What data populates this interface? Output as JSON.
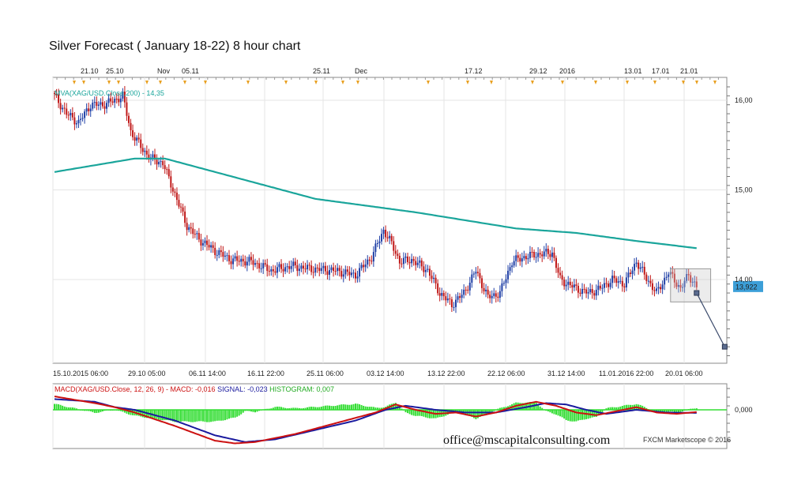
{
  "title": "Silver Forecast ( January 18-22) 8 hour chart",
  "footer": {
    "email": "office@mscapitalconsulting.com",
    "credit": "FXCM Marketscope © 2016"
  },
  "colors": {
    "bull": "#1f3fa6",
    "bear": "#c01818",
    "ma": "#1aa59b",
    "macd": "#cc1111",
    "signal": "#1a1a9e",
    "histogram": "#33dd33",
    "grid": "#e4e4e4",
    "last_price_bg": "#3c9fd8"
  },
  "chart_data": [
    {
      "type": "candlestick",
      "title": "",
      "xlabel": "",
      "ylabel": "",
      "ylim": [
        13.1,
        16.12
      ],
      "yticks": [
        "16,00",
        "15,00",
        "14,00"
      ],
      "top_date_labels": [
        "21.10",
        "25.10",
        "Nov",
        "05.11",
        "25.11",
        "Dec",
        "17.12",
        "29.12",
        "2016",
        "13.01",
        "17.01",
        "21.01"
      ],
      "bottom_date_labels": [
        "15.10.2015 06:00",
        "29.10 05:00",
        "06.11 14:00",
        "16.11 22:00",
        "25.11 06:00",
        "03.12 14:00",
        "13.12 22:00",
        "22.12 06:00",
        "31.12 14:00",
        "11.01.2016 22:00",
        "20.01 06:00"
      ],
      "last_price_label": "13,922",
      "ma_label": "MVA(XAG/USD.Close,200) - 14,35",
      "close_anchors": [
        [
          0,
          16.05
        ],
        [
          6,
          15.85
        ],
        [
          12,
          15.75
        ],
        [
          18,
          15.95
        ],
        [
          24,
          15.95
        ],
        [
          30,
          16.0
        ],
        [
          34,
          16.05
        ],
        [
          38,
          15.65
        ],
        [
          44,
          15.45
        ],
        [
          48,
          15.35
        ],
        [
          54,
          15.3
        ],
        [
          60,
          14.95
        ],
        [
          66,
          14.6
        ],
        [
          72,
          14.45
        ],
        [
          80,
          14.32
        ],
        [
          88,
          14.22
        ],
        [
          98,
          14.2
        ],
        [
          108,
          14.1
        ],
        [
          118,
          14.15
        ],
        [
          128,
          14.12
        ],
        [
          140,
          14.1
        ],
        [
          150,
          14.05
        ],
        [
          158,
          14.25
        ],
        [
          164,
          14.55
        ],
        [
          168,
          14.4
        ],
        [
          172,
          14.2
        ],
        [
          178,
          14.22
        ],
        [
          186,
          14.1
        ],
        [
          192,
          13.85
        ],
        [
          198,
          13.72
        ],
        [
          204,
          13.85
        ],
        [
          210,
          14.1
        ],
        [
          216,
          13.8
        ],
        [
          222,
          13.85
        ],
        [
          228,
          14.2
        ],
        [
          234,
          14.25
        ],
        [
          240,
          14.28
        ],
        [
          248,
          14.3
        ],
        [
          252,
          14.0
        ],
        [
          260,
          13.9
        ],
        [
          266,
          13.85
        ],
        [
          272,
          13.9
        ],
        [
          278,
          14.0
        ],
        [
          284,
          13.95
        ],
        [
          290,
          14.2
        ],
        [
          294,
          14.05
        ],
        [
          300,
          13.85
        ],
        [
          306,
          14.08
        ],
        [
          312,
          13.9
        ],
        [
          316,
          14.05
        ],
        [
          320,
          13.92
        ]
      ],
      "ma_anchors": [
        [
          0,
          15.2
        ],
        [
          40,
          15.35
        ],
        [
          55,
          15.35
        ],
        [
          80,
          15.2
        ],
        [
          130,
          14.9
        ],
        [
          180,
          14.75
        ],
        [
          230,
          14.57
        ],
        [
          260,
          14.52
        ],
        [
          290,
          14.43
        ],
        [
          320,
          14.35
        ]
      ],
      "forecast_points": [
        [
          320,
          13.85
        ],
        [
          334,
          13.25
        ]
      ]
    },
    {
      "type": "line",
      "title": "",
      "xlabel": "",
      "ylabel": "",
      "ylim": [
        -0.3,
        0.25
      ],
      "yticks": [
        "0,000"
      ],
      "legend": {
        "macd_name": "MACD(XAG/USD.Close, 12, 26, 9)",
        "macd_value": "MACD: -0,016",
        "signal_value": "SIGNAL: -0,023",
        "histogram_value": "HISTOGRAM: 0,007"
      },
      "macd_anchors": [
        [
          0,
          0.1
        ],
        [
          20,
          0.05
        ],
        [
          30,
          0.02
        ],
        [
          40,
          -0.02
        ],
        [
          60,
          -0.12
        ],
        [
          80,
          -0.23
        ],
        [
          90,
          -0.25
        ],
        [
          100,
          -0.24
        ],
        [
          120,
          -0.18
        ],
        [
          140,
          -0.1
        ],
        [
          160,
          -0.02
        ],
        [
          170,
          0.04
        ],
        [
          180,
          0.0
        ],
        [
          190,
          -0.03
        ],
        [
          200,
          -0.02
        ],
        [
          210,
          -0.05
        ],
        [
          220,
          -0.02
        ],
        [
          230,
          0.03
        ],
        [
          240,
          0.06
        ],
        [
          250,
          0.03
        ],
        [
          260,
          -0.02
        ],
        [
          270,
          -0.04
        ],
        [
          280,
          -0.01
        ],
        [
          290,
          0.02
        ],
        [
          300,
          -0.02
        ],
        [
          310,
          -0.03
        ],
        [
          320,
          -0.016
        ]
      ],
      "signal_anchors": [
        [
          0,
          0.08
        ],
        [
          20,
          0.06
        ],
        [
          30,
          0.02
        ],
        [
          40,
          0.0
        ],
        [
          60,
          -0.08
        ],
        [
          80,
          -0.19
        ],
        [
          95,
          -0.24
        ],
        [
          110,
          -0.22
        ],
        [
          130,
          -0.15
        ],
        [
          150,
          -0.08
        ],
        [
          165,
          0.0
        ],
        [
          175,
          0.03
        ],
        [
          190,
          0.0
        ],
        [
          205,
          -0.02
        ],
        [
          220,
          -0.02
        ],
        [
          235,
          0.02
        ],
        [
          245,
          0.05
        ],
        [
          255,
          0.04
        ],
        [
          265,
          0.0
        ],
        [
          275,
          -0.03
        ],
        [
          290,
          0.0
        ],
        [
          305,
          -0.02
        ],
        [
          320,
          -0.023
        ]
      ]
    }
  ]
}
